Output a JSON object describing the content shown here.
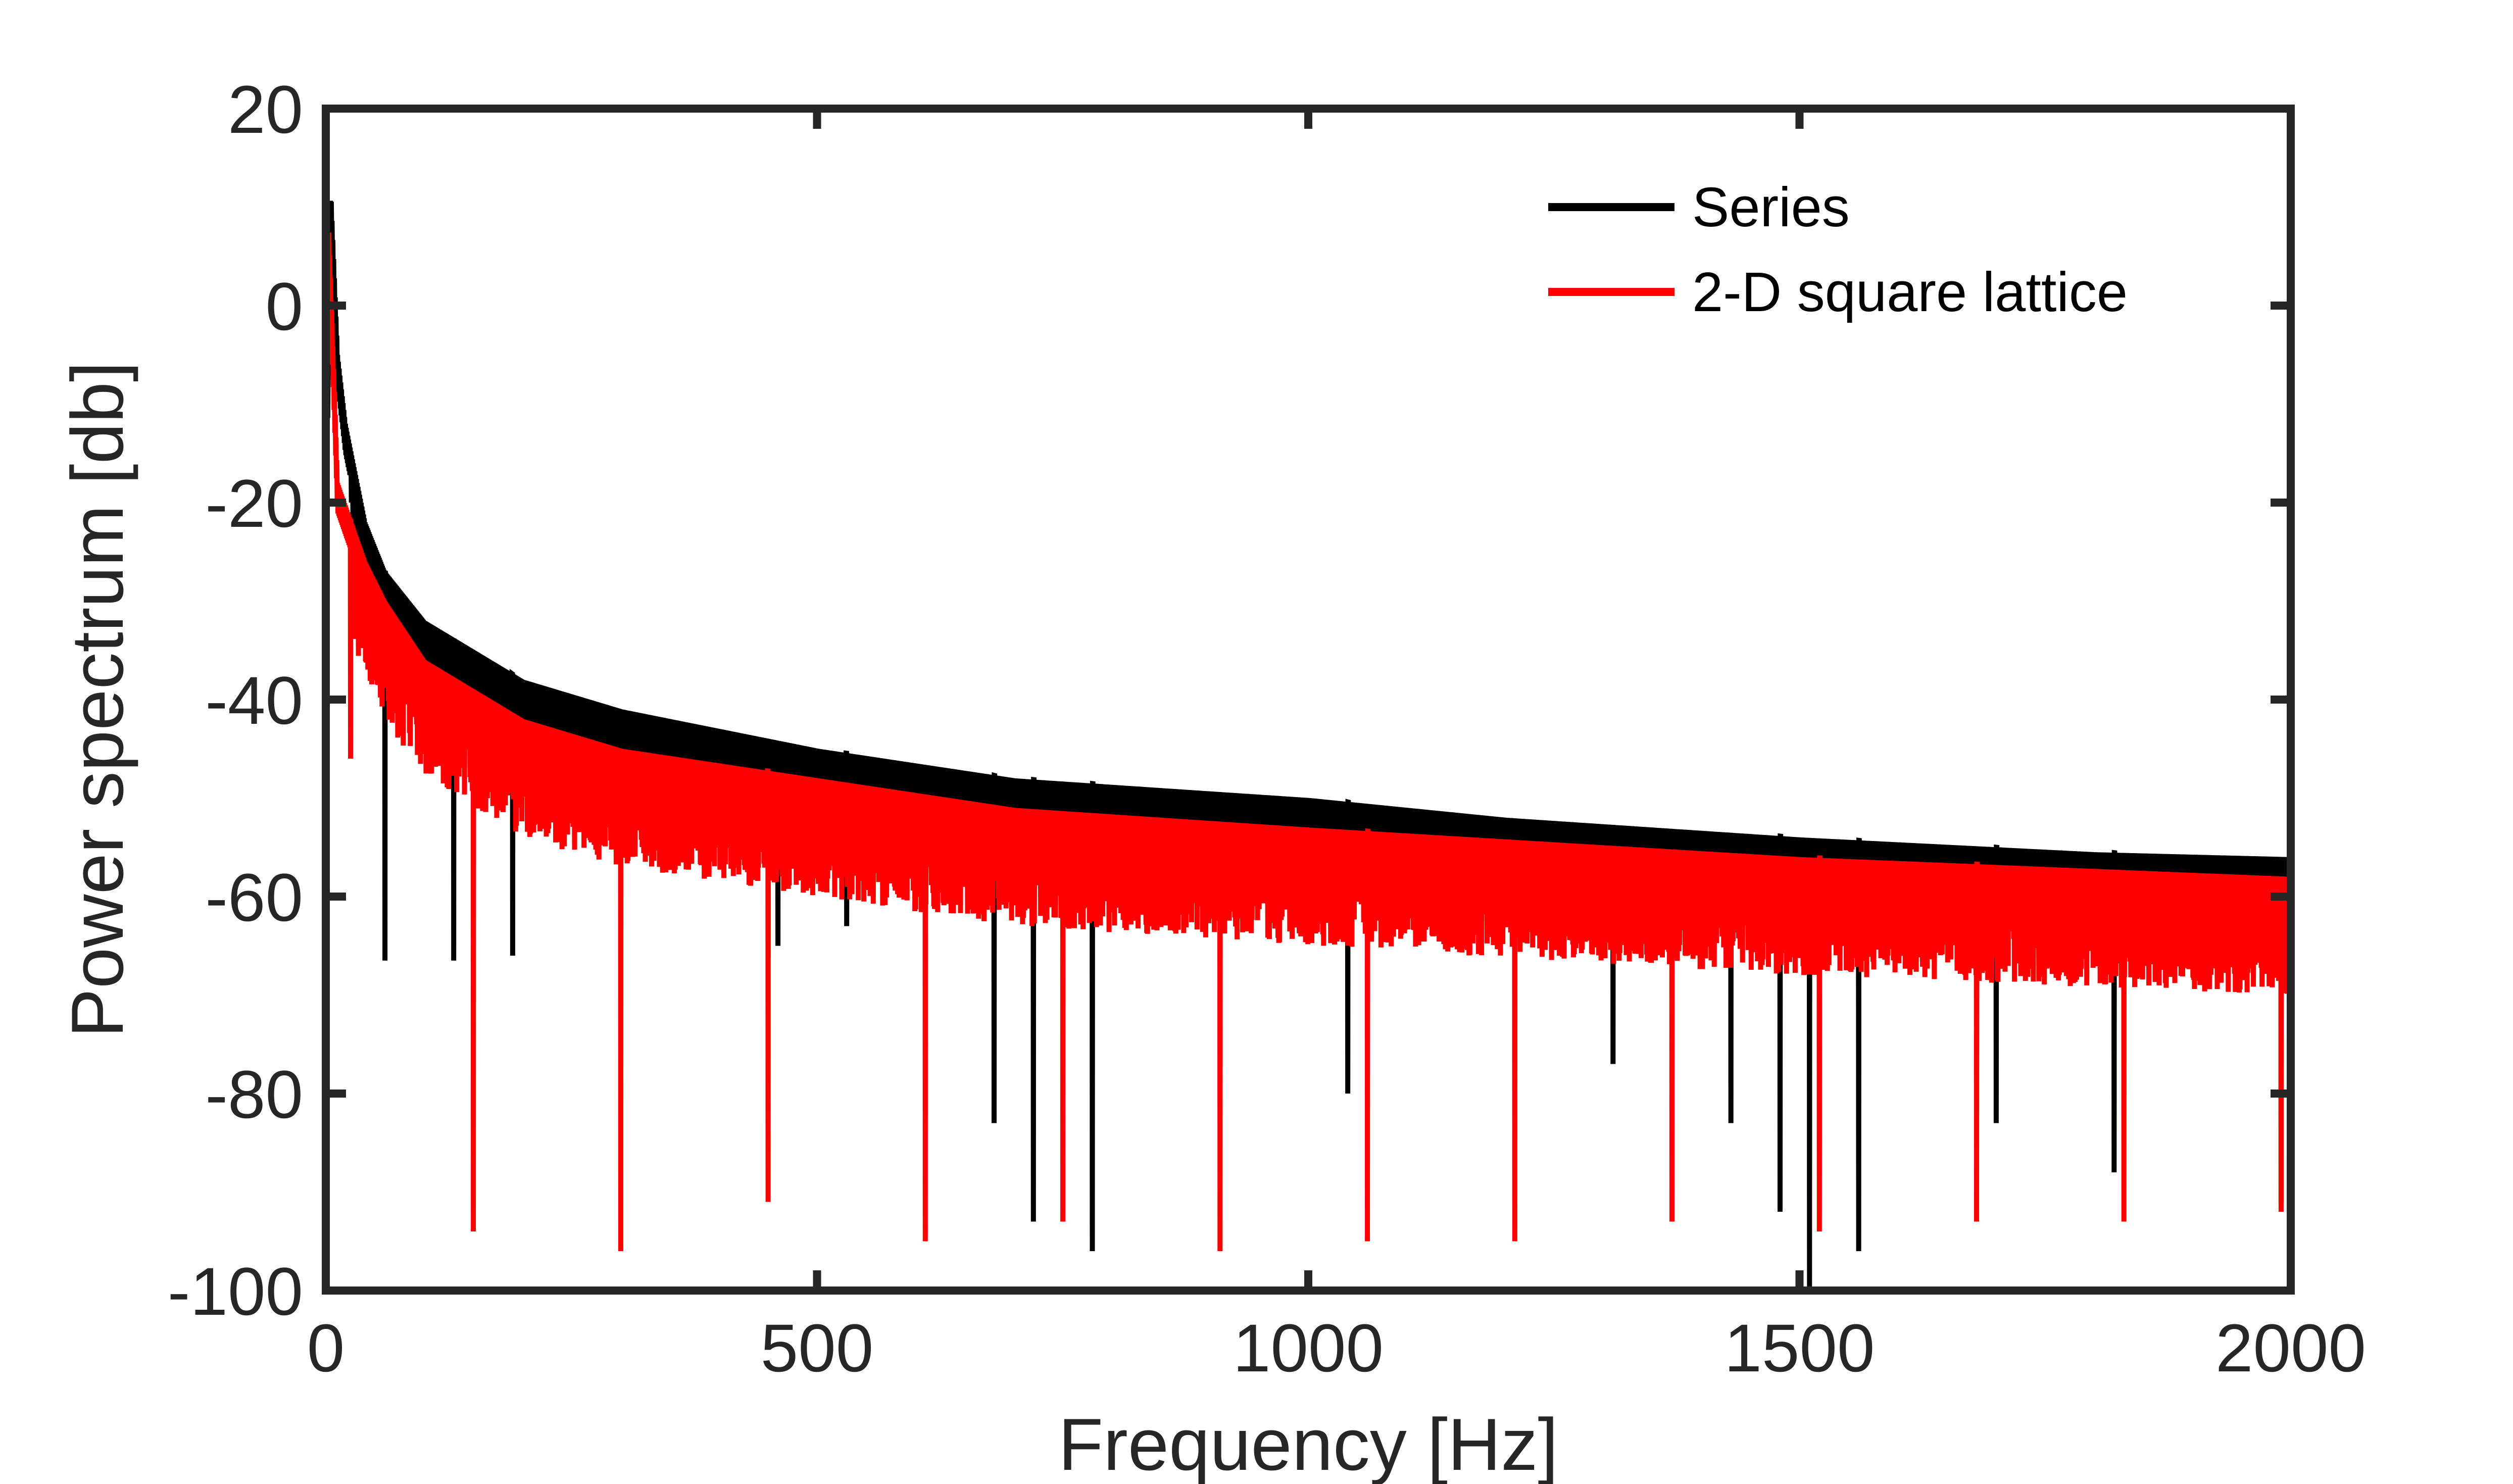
{
  "chart_data": {
    "type": "line",
    "title": "",
    "xlabel": "Frequency [Hz]",
    "ylabel": "Power spectrum [db]",
    "xlim": [
      0,
      2000
    ],
    "ylim": [
      -100,
      20
    ],
    "xticks": [
      0,
      500,
      1000,
      1500,
      2000
    ],
    "xtick_labels": [
      "0",
      "500",
      "1000",
      "1500",
      "2000"
    ],
    "yticks": [
      -100,
      -80,
      -60,
      -40,
      -20,
      0,
      20
    ],
    "ytick_labels": [
      "-100",
      "-80",
      "-60",
      "-40",
      "-20",
      "0",
      "20"
    ],
    "grid": false,
    "legend_position": "top-right",
    "series": [
      {
        "name": "Series",
        "color": "#000000",
        "peak": {
          "x": 5,
          "y": 12
        },
        "envelope": [
          [
            0,
            -22
          ],
          [
            5,
            12
          ],
          [
            12,
            -5
          ],
          [
            20,
            -12
          ],
          [
            40,
            -22
          ],
          [
            60,
            -27
          ],
          [
            100,
            -32
          ],
          [
            200,
            -38
          ],
          [
            300,
            -41
          ],
          [
            400,
            -43
          ],
          [
            500,
            -45
          ],
          [
            700,
            -48
          ],
          [
            1000,
            -50
          ],
          [
            1200,
            -52
          ],
          [
            1500,
            -54
          ],
          [
            1800,
            -55.5
          ],
          [
            2000,
            -56
          ]
        ],
        "dips": [
          [
            60,
            -66.5
          ],
          [
            130,
            -66.5
          ],
          [
            190,
            -66
          ],
          [
            460,
            -65
          ],
          [
            530,
            -63
          ],
          [
            680,
            -83
          ],
          [
            720,
            -93
          ],
          [
            780,
            -96
          ],
          [
            1040,
            -80
          ],
          [
            1310,
            -77
          ],
          [
            1430,
            -83
          ],
          [
            1480,
            -92
          ],
          [
            1510,
            -100
          ],
          [
            1560,
            -96
          ],
          [
            1700,
            -83
          ],
          [
            1820,
            -88
          ],
          [
            1990,
            -91
          ]
        ]
      },
      {
        "name": "2-D square lattice",
        "color": "#ff0000",
        "peak": {
          "x": 3,
          "y": 8
        },
        "envelope": [
          [
            0,
            -22
          ],
          [
            3,
            8
          ],
          [
            12,
            -18
          ],
          [
            40,
            -26
          ],
          [
            60,
            -30
          ],
          [
            100,
            -36
          ],
          [
            200,
            -42
          ],
          [
            300,
            -45
          ],
          [
            500,
            -48
          ],
          [
            700,
            -51
          ],
          [
            1000,
            -53
          ],
          [
            1500,
            -56
          ],
          [
            2000,
            -58
          ]
        ],
        "dips": [
          [
            25,
            -46
          ],
          [
            150,
            -94
          ],
          [
            300,
            -96
          ],
          [
            450,
            -91
          ],
          [
            610,
            -95
          ],
          [
            750,
            -93
          ],
          [
            910,
            -96
          ],
          [
            1060,
            -95
          ],
          [
            1210,
            -95
          ],
          [
            1370,
            -93
          ],
          [
            1520,
            -94
          ],
          [
            1680,
            -93
          ],
          [
            1830,
            -93
          ],
          [
            1990,
            -92
          ]
        ]
      }
    ]
  }
}
